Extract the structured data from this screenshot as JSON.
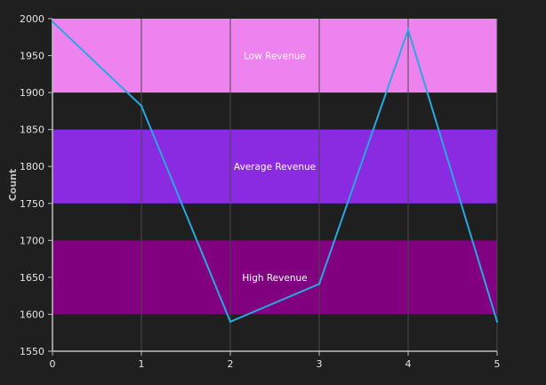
{
  "chart_data": {
    "type": "line",
    "title": "",
    "xlabel": "",
    "ylabel": "Count",
    "x": [
      0,
      1,
      2,
      3,
      4,
      5
    ],
    "xlim": [
      0,
      5
    ],
    "ylim": [
      1550,
      2000
    ],
    "x_ticks": [
      0,
      1,
      2,
      3,
      4,
      5
    ],
    "y_ticks": [
      1550,
      1600,
      1650,
      1700,
      1750,
      1800,
      1850,
      1900,
      1950,
      2000
    ],
    "grid": "vertical",
    "series": [
      {
        "values": [
          1996,
          1882,
          1590,
          1641,
          1985,
          1590
        ],
        "color": "#29a8e0"
      }
    ],
    "bands": [
      {
        "label": "Low Revenue",
        "from": 1900,
        "to": 2000,
        "color": "#ee82ee"
      },
      {
        "label": "Average Revenue",
        "from": 1750,
        "to": 1850,
        "color": "#8a2be2"
      },
      {
        "label": "High Revenue",
        "from": 1600,
        "to": 1700,
        "color": "#800080"
      }
    ],
    "colors": {
      "background": "#1f1f1f",
      "axis": "#bfbfbf",
      "grid": "#4a4a4a",
      "text": "#e6e6e6"
    }
  }
}
